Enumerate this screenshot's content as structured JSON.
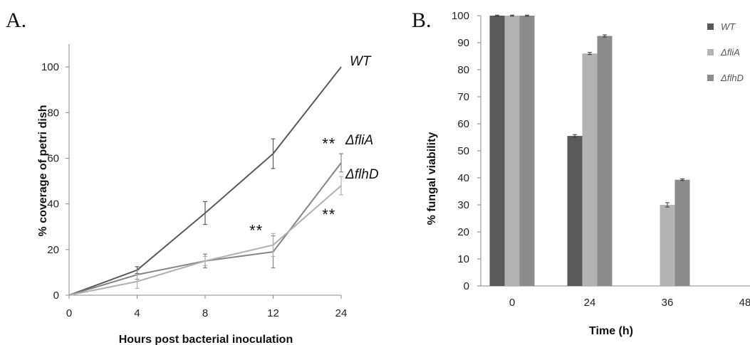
{
  "chart_data": [
    {
      "type": "line",
      "panel_letter": "A.",
      "xlabel": "Hours post bacterial inoculation",
      "ylabel": "% coverage of petri dish",
      "categories": [
        "0",
        "4",
        "8",
        "12",
        "24"
      ],
      "ylim": [
        0,
        110
      ],
      "yticks": [
        0,
        20,
        40,
        60,
        80,
        100
      ],
      "grid": false,
      "legend": "labels at line ends",
      "series": [
        {
          "name": "WT",
          "color": "#5a5a5a",
          "values": [
            0,
            11,
            36,
            62,
            100
          ],
          "err": [
            0,
            1.5,
            5,
            6.5,
            0
          ]
        },
        {
          "name": "ΔfliA",
          "color": "#858585",
          "values": [
            0,
            9,
            15,
            19,
            58
          ],
          "err": [
            0,
            2,
            3,
            7,
            4
          ]
        },
        {
          "name": "ΔflhD",
          "color": "#b0b0b0",
          "values": [
            0,
            6,
            15,
            22,
            48
          ],
          "err": [
            0,
            3,
            2,
            5,
            4
          ]
        }
      ],
      "annotations": [
        {
          "text": "**",
          "x_index": 2.75,
          "y": 26
        },
        {
          "text": "**",
          "x_index": 3.82,
          "y": 64
        },
        {
          "text": "**",
          "x_index": 3.82,
          "y": 33
        }
      ]
    },
    {
      "type": "bar",
      "panel_letter": "B.",
      "xlabel": "Time (h)",
      "ylabel": "% fungal viability",
      "categories": [
        "0",
        "24",
        "36",
        "48"
      ],
      "ylim": [
        0,
        100
      ],
      "yticks": [
        0,
        10,
        20,
        30,
        40,
        50,
        60,
        70,
        80,
        90,
        100
      ],
      "grid": false,
      "legend": "right",
      "series": [
        {
          "name": "WT",
          "color": "#595959",
          "values": [
            100,
            55.5,
            0,
            0
          ],
          "err": [
            0.2,
            0.5,
            0,
            0
          ]
        },
        {
          "name": "ΔfliA",
          "color": "#b3b3b3",
          "values": [
            100,
            86,
            30,
            0
          ],
          "err": [
            0.2,
            0.4,
            0.8,
            0
          ]
        },
        {
          "name": "ΔflhD",
          "color": "#8c8c8c",
          "values": [
            100,
            92.5,
            39.3,
            0
          ],
          "err": [
            0.2,
            0.4,
            0.3,
            0
          ]
        }
      ]
    }
  ]
}
